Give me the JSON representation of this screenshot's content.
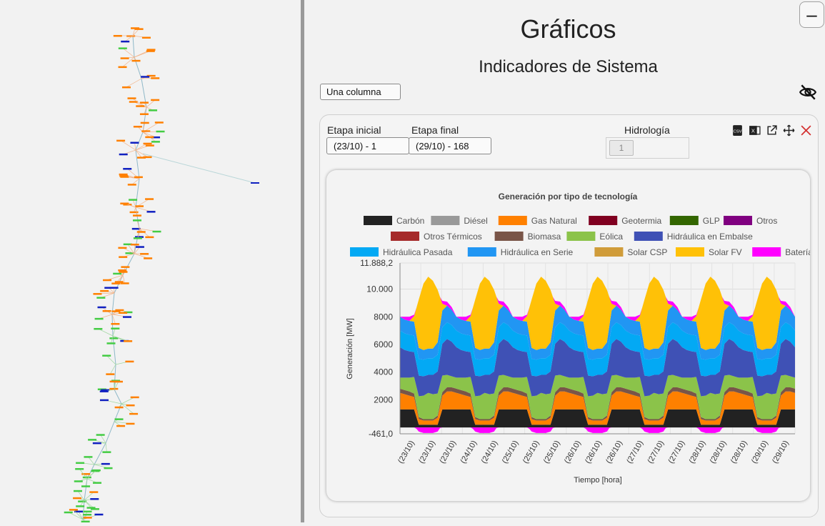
{
  "left_panel": {
    "description_icon": "network-map"
  },
  "main": {
    "title": "Gráficos",
    "subtitle": "Indicadores de Sistema",
    "layout_select": "Una columna",
    "collapse_icon": "minus-icon",
    "visibility_icon": "eye-off-icon"
  },
  "panel": {
    "etapa_inicial_label": "Etapa inicial",
    "etapa_inicial_value": "(23/10) - 1",
    "etapa_final_label": "Etapa final",
    "etapa_final_value": "(29/10) - 168",
    "hidrologia_label": "Hidrología",
    "hidrologia_value": "1",
    "toolbar_icons": [
      "csv-icon",
      "excel-icon",
      "popout-icon",
      "move-icon",
      "close-icon"
    ]
  },
  "chart_data": {
    "type": "area",
    "title": "Generación por tipo de tecnología",
    "xlabel": "Tiempo [hora]",
    "ylabel": "Generación [MW]",
    "ylim": [
      -461.0,
      11888.2
    ],
    "y_ticks": [
      "11.888,2",
      "10.000",
      "8000",
      "6000",
      "4000",
      "2000",
      "-461,0"
    ],
    "x_tick_labels": [
      "(23/10)",
      "(23/10)",
      "(23/10)",
      "(24/10)",
      "(24/10)",
      "(25/10)",
      "(25/10)",
      "(25/10)",
      "(26/10)",
      "(26/10)",
      "(26/10)",
      "(27/10)",
      "(27/10)",
      "(27/10)",
      "(28/10)",
      "(28/10)",
      "(28/10)",
      "(29/10)",
      "(29/10)"
    ],
    "legend": [
      {
        "name": "Carbón",
        "color": "#222222"
      },
      {
        "name": "Diésel",
        "color": "#999999"
      },
      {
        "name": "Gas Natural",
        "color": "#ff8000"
      },
      {
        "name": "Geotermia",
        "color": "#800020"
      },
      {
        "name": "GLP",
        "color": "#336600"
      },
      {
        "name": "Otros",
        "color": "#800080"
      },
      {
        "name": "Otros Térmicos",
        "color": "#a52a2a"
      },
      {
        "name": "Biomasa",
        "color": "#795548"
      },
      {
        "name": "Eólica",
        "color": "#8bc34a"
      },
      {
        "name": "Hidráulica en Embalse",
        "color": "#3f51b5"
      },
      {
        "name": "Hidráulica Pasada",
        "color": "#03a9f4"
      },
      {
        "name": "Hidráulica en Serie",
        "color": "#2196f3"
      },
      {
        "name": "Solar CSP",
        "color": "#d09c3a"
      },
      {
        "name": "Solar FV",
        "color": "#ffc107"
      },
      {
        "name": "Batería",
        "color": "#ff00ff"
      }
    ],
    "daily_profile": {
      "hours": [
        0,
        2,
        4,
        6,
        8,
        10,
        12,
        14,
        16,
        18,
        20,
        22,
        24
      ],
      "carbon": [
        1300,
        1300,
        1300,
        1300,
        200,
        200,
        200,
        200,
        200,
        1300,
        1300,
        1300,
        1300
      ],
      "gas": [
        1200,
        1100,
        1000,
        900,
        400,
        300,
        300,
        300,
        500,
        1000,
        1300,
        1300,
        1200
      ],
      "biomasa": [
        300,
        300,
        300,
        250,
        150,
        100,
        100,
        100,
        150,
        250,
        300,
        300,
        300
      ],
      "eolica": [
        800,
        900,
        1000,
        1200,
        1500,
        1700,
        1900,
        1800,
        1600,
        1200,
        900,
        800,
        800
      ],
      "embalse": [
        2200,
        2000,
        1900,
        1800,
        1500,
        1400,
        1300,
        1400,
        1600,
        2300,
        2600,
        2500,
        2200
      ],
      "pasada": [
        1200,
        1200,
        1200,
        1200,
        1200,
        1200,
        1200,
        1200,
        1200,
        1200,
        1200,
        1200,
        1200
      ],
      "serie": [
        1000,
        1000,
        1000,
        1000,
        800,
        700,
        700,
        700,
        900,
        1200,
        1200,
        1100,
        1000
      ],
      "solar_fv": [
        0,
        0,
        0,
        400,
        3500,
        4800,
        5200,
        4900,
        3800,
        500,
        0,
        0,
        0
      ],
      "bateria": [
        0,
        200,
        300,
        100,
        -300,
        -400,
        -400,
        -400,
        -300,
        200,
        300,
        200,
        0
      ]
    }
  }
}
